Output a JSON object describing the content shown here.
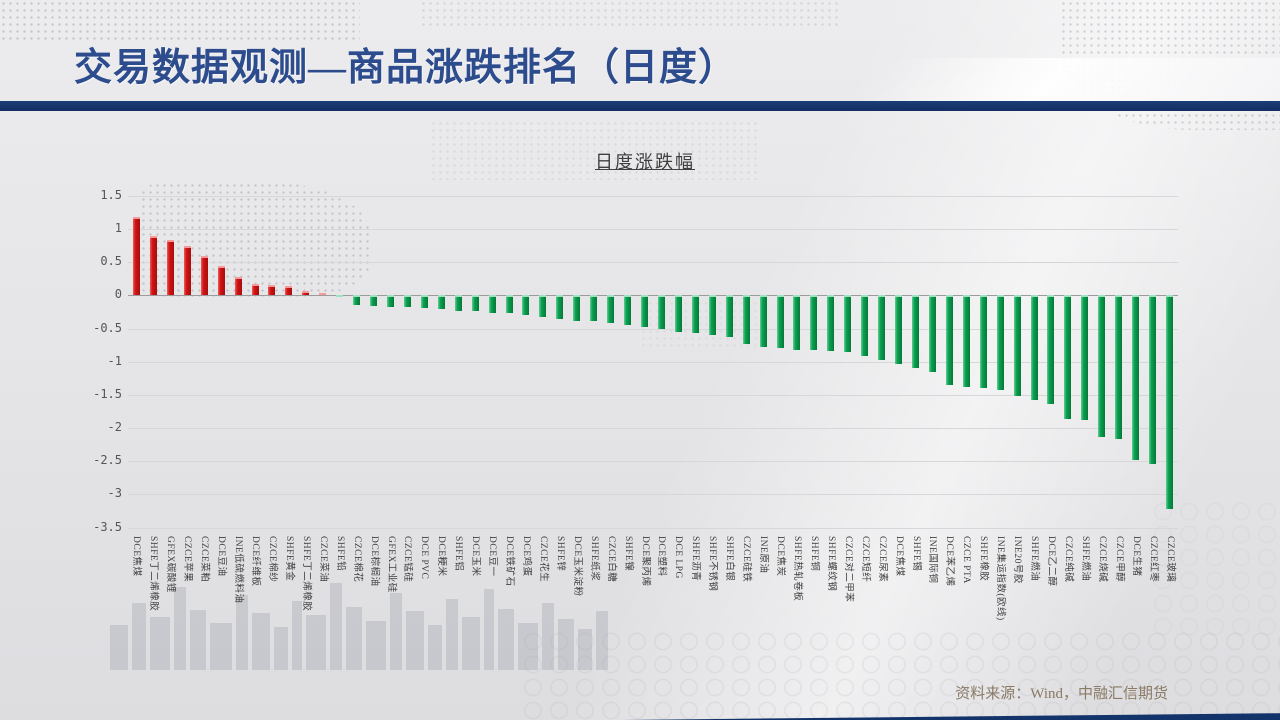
{
  "slide": {
    "title": "交易数据观测—商品涨跌排名（日度）",
    "source_note": "资料来源：Wind，中融汇信期货"
  },
  "chart_data": {
    "type": "bar",
    "title": "日度涨跌幅",
    "xlabel": "",
    "ylabel": "",
    "ylim": [
      -3.5,
      1.5
    ],
    "grid": true,
    "legend_position": "none",
    "positive_color": "#c81212",
    "negative_color": "#0ba050",
    "yticks": [
      1.5,
      1,
      0.5,
      0,
      -0.5,
      -1,
      -1.5,
      -2,
      -2.5,
      -3,
      -3.5
    ],
    "ytick_labels": [
      "1.5",
      "1",
      "0.5",
      "0",
      "-0.5",
      "-1",
      "-1.5",
      "-2",
      "-2.5",
      "-3",
      "-3.5"
    ],
    "categories": [
      "DCE焦煤",
      "SHFE丁二烯橡胶",
      "GFEX碳酸锂",
      "CZCE苹果",
      "CZCE菜粕",
      "DCE豆油",
      "INE低硫燃料油",
      "DCE纤维板",
      "CZCE棉纱",
      "SHFE黄金",
      "SHFE丁二烯橡胶",
      "CZCE菜油",
      "SHFE铅",
      "CZCE棉花",
      "DCE棕榈油",
      "GFEX工业硅",
      "CZCE锰硅",
      "DCE PVC",
      "DCE粳米",
      "SHFE铝",
      "DCE玉米",
      "DCE豆一",
      "DCE铁矿石",
      "DCE鸡蛋",
      "CZCE花生",
      "SHFE锌",
      "DCE玉米淀粉",
      "SHFE纸浆",
      "CZCE白糖",
      "SHFE镍",
      "DCE聚丙烯",
      "DCE塑料",
      "DCE LPG",
      "SHFE沥青",
      "SHFE不锈钢",
      "SHFE白银",
      "CZCE硅铁",
      "INE原油",
      "DCE焦炭",
      "SHFE热轧卷板",
      "SHFE铜",
      "SHFE螺纹钢",
      "CZCE对二甲苯",
      "CZCE短纤",
      "CZCE尿素",
      "DCE焦煤",
      "SHFE锡",
      "INE国际铜",
      "DCE苯乙烯",
      "CZCE PTA",
      "SHFE橡胶",
      "INE集运指数(欧线)",
      "INE20号胶",
      "SHFE燃油",
      "DCE乙二醇",
      "CZCE纯碱",
      "SHFE燃油",
      "CZCE烧碱",
      "CZCE甲醇",
      "DCE生猪",
      "CZCE红枣",
      "CZCE玻璃"
    ],
    "values": [
      1.18,
      0.9,
      0.83,
      0.75,
      0.6,
      0.45,
      0.28,
      0.17,
      0.16,
      0.15,
      0.06,
      0.04,
      -0.02,
      -0.15,
      -0.16,
      -0.17,
      -0.18,
      -0.19,
      -0.21,
      -0.23,
      -0.24,
      -0.26,
      -0.27,
      -0.29,
      -0.32,
      -0.35,
      -0.38,
      -0.39,
      -0.42,
      -0.44,
      -0.47,
      -0.5,
      -0.55,
      -0.57,
      -0.6,
      -0.62,
      -0.74,
      -0.78,
      -0.8,
      -0.82,
      -0.83,
      -0.84,
      -0.85,
      -0.92,
      -0.97,
      -1.03,
      -1.1,
      -1.15,
      -1.35,
      -1.38,
      -1.4,
      -1.42,
      -1.51,
      -1.57,
      -1.63,
      -1.86,
      -1.88,
      -2.13,
      -2.16,
      -2.48,
      -2.54,
      -3.22
    ]
  }
}
